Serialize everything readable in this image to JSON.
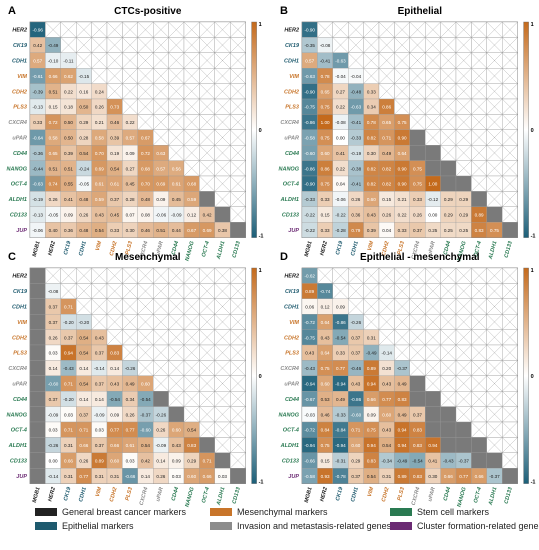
{
  "labels": {
    "cell_types": "",
    "genes": [
      "HER2",
      "CK19",
      "CDH1",
      "VIM",
      "CDH2",
      "PLS3",
      "CXCR4",
      "uPAR",
      "CD44",
      "NANOG",
      "OCT-4",
      "ALDH1",
      "CD133",
      "JUP"
    ],
    "x_genes": [
      "MGB1",
      "HER2",
      "CK19",
      "CDH1",
      "VIM",
      "CDH2",
      "PLS3",
      "CXCR4",
      "uPAR",
      "CD44",
      "NANOG",
      "OCT-4",
      "ALDH1",
      "CD133"
    ]
  },
  "colors": {
    "general": "#222222",
    "epithelial": "#1e5a6e",
    "mesenchymal": "#c8752a",
    "invasion": "#8c8c8c",
    "stem": "#2a7a52",
    "cluster": "#6b2a73",
    "neg": "#1c5f78",
    "pos": "#c46a1c",
    "mid": "#ffffff"
  },
  "gene_group": {
    "MGB1": "general",
    "HER2": "general",
    "CK19": "epithelial",
    "CDH1": "epithelial",
    "VIM": "mesenchymal",
    "CDH2": "mesenchymal",
    "PLS3": "mesenchymal",
    "CXCR4": "invasion",
    "uPAR": "invasion",
    "CD44": "stem",
    "NANOG": "stem",
    "OCT-4": "stem",
    "ALDH1": "stem",
    "CD133": "stem",
    "JUP": "cluster"
  },
  "colorbar": {
    "max_label": "1",
    "mid_label": "0",
    "min_label": "-1"
  },
  "legend": [
    {
      "label": "General breast cancer markers",
      "group": "general"
    },
    {
      "label": "Mesenchymal markers",
      "group": "mesenchymal"
    },
    {
      "label": "Stem cell markers",
      "group": "stem"
    },
    {
      "label": "Epithelial markers",
      "group": "epithelial"
    },
    {
      "label": "Invasion and metastasis-related genes",
      "group": "invasion"
    },
    {
      "label": "Cluster formation-related gene",
      "group": "cluster"
    }
  ],
  "chart_data": [
    {
      "type": "heatmap",
      "letter": "A",
      "title": "CTCs-positive",
      "vlim": [
        -1,
        1
      ],
      "rows": [
        [
          -0.96
        ],
        [
          0.42,
          -0.49
        ],
        [
          0.57,
          -0.1,
          -0.11
        ],
        [
          -0.61,
          0.66,
          0.62,
          -0.15
        ],
        [
          -0.39,
          0.51,
          0.22,
          0.16,
          0.24
        ],
        [
          -0.13,
          0.15,
          0.18,
          0.5,
          0.26,
          0.73
        ],
        [
          0.33,
          0.72,
          0.5,
          0.29,
          0.21,
          0.46,
          0.22
        ],
        [
          -0.64,
          0.58,
          0.5,
          0.28,
          0.58,
          0.39,
          0.57,
          0.67
        ],
        [
          -0.36,
          0.65,
          0.39,
          0.54,
          0.7,
          0.19,
          0.09,
          0.72,
          0.63
        ],
        [
          -0.44,
          0.51,
          0.51,
          -0.24,
          0.69,
          0.54,
          0.27,
          0.68,
          0.57,
          0.56
        ],
        [
          -0.63,
          0.74,
          0.55,
          -0.05,
          0.61,
          0.61,
          0.45,
          0.7,
          0.69,
          0.61,
          0.68
        ],
        [
          -0.19,
          0.26,
          0.41,
          0.48,
          0.59,
          0.37,
          0.28,
          0.48,
          0.09,
          0.45,
          0.59
        ],
        [
          -0.13,
          -0.05,
          0.09,
          0.26,
          0.43,
          0.45,
          0.07,
          0.08,
          -0.06,
          -0.09,
          0.12,
          0.42
        ],
        [
          -0.06,
          0.4,
          0.36,
          0.48,
          0.54,
          0.33,
          0.3,
          0.46,
          0.51,
          0.44,
          0.67,
          0.69,
          0.38
        ]
      ]
    },
    {
      "type": "heatmap",
      "letter": "B",
      "title": "Epithelial",
      "vlim": [
        -1,
        1
      ],
      "rows": [
        [
          -0.9
        ],
        [
          -0.35,
          -0.08
        ],
        [
          0.57,
          -0.41,
          -0.63
        ],
        [
          -0.63,
          0.78,
          -0.04,
          -0.04
        ],
        [
          -0.9,
          0.65,
          0.27,
          -0.48,
          0.33
        ],
        [
          -0.75,
          0.75,
          0.22,
          -0.63,
          0.34,
          0.86
        ],
        [
          -0.86,
          1.0,
          -0.08,
          -0.41,
          0.78,
          0.65,
          0.75
        ],
        [
          -0.58,
          0.75,
          0.0,
          -0.33,
          0.82,
          0.71,
          0.9
        ],
        [
          -0.6,
          0.6,
          0.41,
          -0.19,
          0.3,
          0.49,
          0.64
        ],
        [
          -0.86,
          0.86,
          0.22,
          -0.38,
          0.82,
          0.82,
          0.9,
          0.75
        ],
        [
          -0.9,
          0.75,
          0.04,
          -0.41,
          0.82,
          0.82,
          0.9,
          0.75,
          1.0
        ],
        [
          -0.33,
          0.33,
          -0.06,
          0.26,
          0.6,
          0.15,
          0.21,
          0.33,
          -0.12,
          0.29,
          0.29
        ],
        [
          -0.22,
          0.15,
          -0.22,
          0.36,
          0.43,
          0.26,
          0.22,
          0.26,
          0.0,
          0.29,
          0.29,
          0.89
        ],
        [
          -0.22,
          0.33,
          -0.28,
          0.79,
          0.39,
          0.04,
          0.33,
          0.37,
          0.25,
          0.25,
          0.25,
          0.83,
          0.75
        ]
      ]
    },
    {
      "type": "heatmap",
      "letter": "C",
      "title": "Mesenchymal",
      "vlim": [
        -1,
        1
      ],
      "rows": [
        [
          null
        ],
        [
          null,
          -0.08
        ],
        [
          null,
          0.37,
          0.71
        ],
        [
          null,
          0.37,
          -0.2,
          -0.2
        ],
        [
          null,
          0.26,
          0.37,
          0.54,
          0.43
        ],
        [
          null,
          0.03,
          0.94,
          0.54,
          0.37,
          0.83
        ],
        [
          null,
          0.14,
          -0.43,
          0.14,
          -0.14,
          0.14,
          -0.26
        ],
        [
          null,
          -0.6,
          0.71,
          0.54,
          0.37,
          0.43,
          0.49,
          0.6
        ],
        [
          null,
          0.37,
          -0.2,
          0.14,
          0.14,
          -0.54,
          0.34,
          -0.54
        ],
        [
          null,
          -0.09,
          0.03,
          0.37,
          -0.09,
          0.09,
          0.26,
          -0.37,
          -0.26
        ],
        [
          null,
          0.03,
          0.71,
          0.71,
          0.03,
          0.77,
          0.77,
          -0.6,
          0.26,
          0.6,
          0.54
        ],
        [
          null,
          -0.26,
          0.31,
          0.66,
          0.37,
          0.66,
          0.61,
          0.54,
          -0.09,
          0.43,
          0.83
        ],
        [
          null,
          0.0,
          0.66,
          0.26,
          0.89,
          0.6,
          0.03,
          0.42,
          0.14,
          0.09,
          0.29,
          0.71
        ],
        [
          null,
          -0.14,
          0.31,
          0.77,
          0.31,
          0.31,
          -0.66,
          0.14,
          0.26,
          0.03,
          0.6,
          0.66,
          0.03
        ]
      ]
    },
    {
      "type": "heatmap",
      "letter": "D",
      "title": "Epithelial - mesenchymal",
      "vlim": [
        -1,
        1
      ],
      "rows": [
        [
          -0.62
        ],
        [
          0.89,
          -0.74
        ],
        [
          0.06,
          0.12,
          0.09
        ],
        [
          -0.72,
          0.64,
          -0.86,
          -0.26
        ],
        [
          -0.75,
          0.43,
          -0.54,
          0.37,
          0.31
        ],
        [
          0.43,
          0.64,
          0.33,
          0.37,
          -0.49,
          -0.14
        ],
        [
          -0.43,
          0.75,
          0.77,
          -0.46,
          0.89,
          0.2,
          -0.37
        ],
        [
          -0.94,
          0.6,
          -0.94,
          0.43,
          0.94,
          0.43,
          0.49
        ],
        [
          -0.67,
          0.53,
          0.49,
          -0.86,
          0.66,
          0.77,
          0.83
        ],
        [
          -0.03,
          0.46,
          -0.33,
          -0.6,
          0.09,
          0.6,
          0.49,
          0.37
        ],
        [
          -0.72,
          0.84,
          -0.84,
          0.71,
          0.75,
          0.43,
          0.94,
          0.83
        ],
        [
          -0.94,
          0.75,
          -0.94,
          0.6,
          0.94,
          0.54,
          0.94,
          0.83,
          0.94
        ],
        [
          -0.66,
          0.15,
          -0.31,
          0.29,
          0.83,
          -0.34,
          -0.49,
          -0.54,
          0.41,
          -0.43,
          -0.37
        ],
        [
          -0.58,
          0.93,
          -0.78,
          0.37,
          0.54,
          0.31,
          0.89,
          0.83,
          0.3,
          0.66,
          0.77,
          0.66,
          -0.37
        ]
      ]
    }
  ]
}
